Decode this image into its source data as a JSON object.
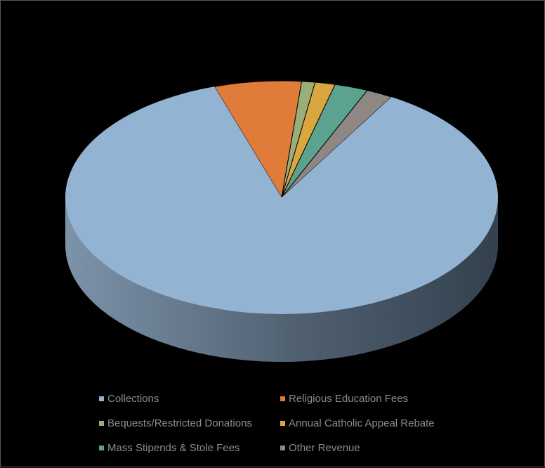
{
  "chart_data": {
    "type": "pie",
    "style": "3d",
    "title": "",
    "categories": [
      "Collections",
      "Religious Education Fees",
      "Bequests/Restricted Donations",
      "Annual Catholic Appeal Rebate",
      "Mass Stipends & Stole Fees",
      "Other Revenue"
    ],
    "values": [
      86.5,
      6.5,
      1.0,
      1.5,
      2.5,
      2.0
    ],
    "colors": [
      "#93b3d3",
      "#e07b39",
      "#9aae7a",
      "#d9a640",
      "#5ba38e",
      "#8f8784"
    ],
    "legend_position": "bottom"
  }
}
